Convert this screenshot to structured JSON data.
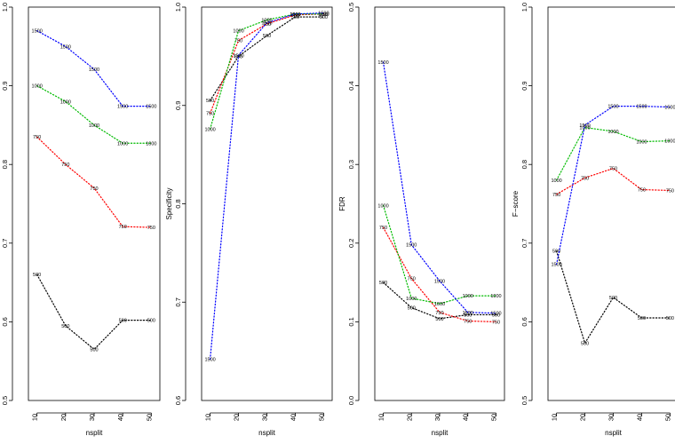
{
  "colors": {
    "500": "#000000",
    "750": "#ff0000",
    "1000": "#00bb00",
    "1500": "#0000ff"
  },
  "chart_data": [
    {
      "type": "line",
      "xlabel": "nsplit",
      "ylabel": "Sensitivity",
      "x": [
        10,
        20,
        30,
        40,
        50
      ],
      "xticks": [
        "10",
        "20",
        "30",
        "40",
        "50"
      ],
      "ylim": [
        0.5,
        1.0
      ],
      "yticks": [
        "0.5",
        "0.6",
        "0.7",
        "0.8",
        "0.9",
        "1.0"
      ],
      "series": [
        {
          "name": "500",
          "values": [
            0.66,
            0.595,
            0.565,
            0.602,
            0.602
          ]
        },
        {
          "name": "750",
          "values": [
            0.835,
            0.8,
            0.77,
            0.721,
            0.72
          ]
        },
        {
          "name": "1000",
          "values": [
            0.9,
            0.88,
            0.85,
            0.827,
            0.827
          ]
        },
        {
          "name": "1500",
          "values": [
            0.97,
            0.95,
            0.921,
            0.874,
            0.874
          ]
        }
      ]
    },
    {
      "type": "line",
      "xlabel": "nsplit",
      "ylabel": "Specificity",
      "x": [
        10,
        20,
        30,
        40,
        50
      ],
      "xticks": [
        "10",
        "20",
        "30",
        "40",
        "50"
      ],
      "ylim": [
        0.6,
        1.0
      ],
      "yticks": [
        "0.6",
        "0.7",
        "0.8",
        "0.9",
        "1.0"
      ],
      "series": [
        {
          "name": "500",
          "values": [
            0.905,
            0.95,
            0.971,
            0.99,
            0.99
          ]
        },
        {
          "name": "750",
          "values": [
            0.892,
            0.966,
            0.983,
            0.992,
            0.993
          ]
        },
        {
          "name": "1000",
          "values": [
            0.876,
            0.976,
            0.987,
            0.993,
            0.993
          ]
        },
        {
          "name": "1500",
          "values": [
            0.642,
            0.951,
            0.984,
            0.993,
            0.994
          ]
        }
      ]
    },
    {
      "type": "line",
      "xlabel": "nsplit",
      "ylabel": "FDR",
      "x": [
        10,
        20,
        30,
        40,
        50
      ],
      "xticks": [
        "10",
        "20",
        "30",
        "40",
        "50"
      ],
      "ylim": [
        0.0,
        0.5
      ],
      "yticks": [
        "0.0",
        "0.1",
        "0.2",
        "0.3",
        "0.4",
        "0.5"
      ],
      "series": [
        {
          "name": "500",
          "values": [
            0.15,
            0.118,
            0.104,
            0.109,
            0.109
          ]
        },
        {
          "name": "750",
          "values": [
            0.22,
            0.155,
            0.112,
            0.101,
            0.1
          ]
        },
        {
          "name": "1000",
          "values": [
            0.248,
            0.13,
            0.123,
            0.133,
            0.133
          ]
        },
        {
          "name": "1500",
          "values": [
            0.43,
            0.198,
            0.152,
            0.112,
            0.111
          ]
        }
      ]
    },
    {
      "type": "line",
      "xlabel": "nsplit",
      "ylabel": "F−score",
      "x": [
        10,
        20,
        30,
        40,
        50
      ],
      "xticks": [
        "10",
        "20",
        "30",
        "40",
        "50"
      ],
      "ylim": [
        0.5,
        1.0
      ],
      "yticks": [
        "0.5",
        "0.6",
        "0.7",
        "0.8",
        "0.9",
        "1.0"
      ],
      "series": [
        {
          "name": "500",
          "values": [
            0.69,
            0.573,
            0.631,
            0.605,
            0.605
          ]
        },
        {
          "name": "750",
          "values": [
            0.762,
            0.783,
            0.795,
            0.768,
            0.767
          ]
        },
        {
          "name": "1000",
          "values": [
            0.78,
            0.847,
            0.842,
            0.829,
            0.83
          ]
        },
        {
          "name": "1500",
          "values": [
            0.673,
            0.85,
            0.874,
            0.874,
            0.873
          ]
        }
      ]
    }
  ]
}
